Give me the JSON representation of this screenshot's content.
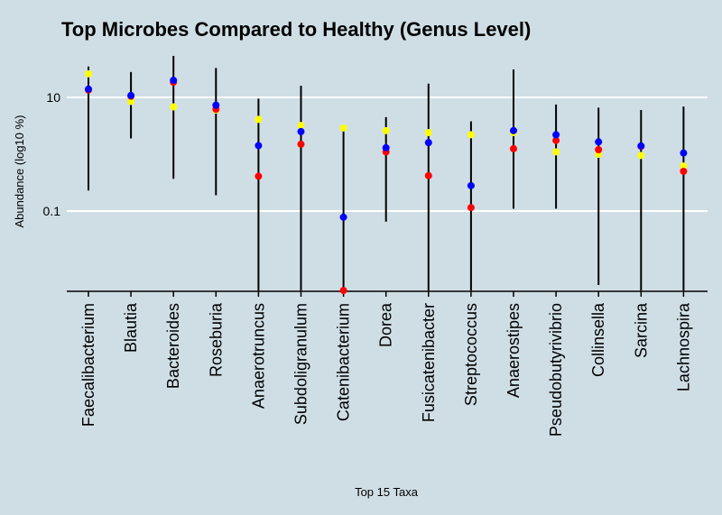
{
  "chart_data": {
    "type": "scatter",
    "title": "Top Microbes Compared to Healthy (Genus Level)",
    "xlabel": "Top 15 Taxa",
    "ylabel": "Abundance (log10 %)",
    "y_scale": "log10",
    "yticks": [
      0.1,
      10
    ],
    "ytick_labels": [
      "0.1",
      "10"
    ],
    "grid": "horizontal",
    "categories": [
      "Faecalibacterium",
      "Blautia",
      "Bacteroides",
      "Roseburia",
      "Anaerotruncus",
      "Subdoligranulum",
      "Catenibacterium",
      "Dorea",
      "Fusicatenibacter",
      "Streptococcus",
      "Anaerostipes",
      "Pseudobutyrivibrio",
      "Collinsella",
      "Sarcina",
      "Lachnospira"
    ],
    "ranges": [
      [
        0.23,
        35
      ],
      [
        1.9,
        28
      ],
      [
        0.37,
        55
      ],
      [
        0.19,
        33
      ],
      [
        0.004,
        9.5
      ],
      [
        0.004,
        16
      ],
      [
        0.004,
        2.6
      ],
      [
        0.065,
        4.5
      ],
      [
        0.004,
        17.5
      ],
      [
        0.004,
        3.8
      ],
      [
        0.11,
        31
      ],
      [
        0.11,
        7.5
      ],
      [
        0.005,
        6.6
      ],
      [
        0.004,
        6.0
      ],
      [
        0.004,
        6.9
      ]
    ],
    "series": [
      {
        "color": "#ffff00",
        "values": [
          26,
          8.5,
          6.8,
          6.0,
          4.1,
          3.2,
          2.9,
          2.6,
          2.4,
          2.2,
          2.4,
          1.1,
          1.0,
          0.95,
          0.62
        ]
      },
      {
        "color": "#ff0000",
        "values": [
          13.5,
          10.5,
          18.5,
          6.2,
          0.41,
          1.5,
          0.004,
          1.1,
          0.42,
          0.115,
          1.25,
          1.75,
          1.2,
          1.38,
          0.5
        ]
      },
      {
        "color": "#0000ff",
        "values": [
          14,
          10.8,
          20,
          7.3,
          1.42,
          2.5,
          0.078,
          1.3,
          1.6,
          0.28,
          2.6,
          2.2,
          1.65,
          1.4,
          1.05
        ]
      }
    ]
  }
}
